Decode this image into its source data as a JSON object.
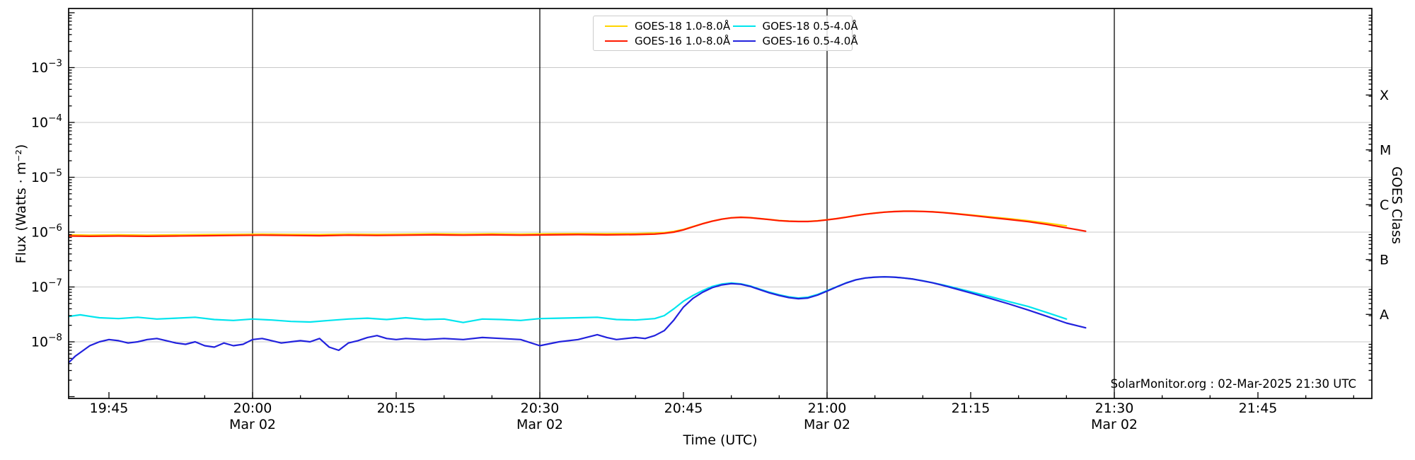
{
  "watermark": "SolarMonitor.org : 02-Mar-2025 21:30 UTC",
  "colors": {
    "background": "#ffffff",
    "grid": "#c8c8c8",
    "time_marker_line": "#000000",
    "spine": "#000000",
    "text": "#000000",
    "legend_border": "#cccccc",
    "goes18_long": "#ffd400",
    "goes16_long": "#ff1a00",
    "goes18_short": "#00e5ee",
    "goes16_short": "#2222dd"
  },
  "axes": {
    "x_label": "Time (UTC)",
    "y_left_label": "Flux (Watts · m⁻²)",
    "y_right_label": "GOES Class",
    "x_major_ticks": [
      {
        "time_min": 5,
        "label": "19:45",
        "date_label": ""
      },
      {
        "time_min": 20,
        "label": "20:00",
        "date_label": "Mar 02"
      },
      {
        "time_min": 35,
        "label": "20:15",
        "date_label": ""
      },
      {
        "time_min": 50,
        "label": "20:30",
        "date_label": "Mar 02"
      },
      {
        "time_min": 65,
        "label": "20:45",
        "date_label": ""
      },
      {
        "time_min": 80,
        "label": "21:00",
        "date_label": "Mar 02"
      },
      {
        "time_min": 95,
        "label": "21:15",
        "date_label": ""
      },
      {
        "time_min": 110,
        "label": "21:30",
        "date_label": "Mar 02"
      },
      {
        "time_min": 125,
        "label": "21:45",
        "date_label": ""
      }
    ],
    "x_minor_step_min": 5,
    "y_decade_exponents": [
      -3,
      -4,
      -5,
      -6,
      -7,
      -8
    ],
    "goes_classes": [
      {
        "label": "X",
        "between_exponents": [
          -4,
          -3
        ]
      },
      {
        "label": "M",
        "between_exponents": [
          -5,
          -4
        ]
      },
      {
        "label": "C",
        "between_exponents": [
          -6,
          -5
        ]
      },
      {
        "label": "B",
        "between_exponents": [
          -7,
          -6
        ]
      },
      {
        "label": "A",
        "between_exponents": [
          -8,
          -7
        ]
      }
    ]
  },
  "legend": {
    "entries": [
      {
        "label": "GOES-18 1.0-8.0Å",
        "color": "#ffd400"
      },
      {
        "label": "GOES-16 1.0-8.0Å",
        "color": "#ff1a00"
      },
      {
        "label": "GOES-18 0.5-4.0Å",
        "color": "#00e5ee"
      },
      {
        "label": "GOES-16 0.5-4.0Å",
        "color": "#2222dd"
      }
    ]
  },
  "chart_data": {
    "type": "line",
    "title": "",
    "xlabel": "Time (UTC)",
    "ylabel": "Flux (Watts · m⁻²)",
    "x_unit": "minutes after 19:40 UTC, 02-Mar-2025",
    "y_scale": "log",
    "xlim_minutes": [
      0.8,
      136.9
    ],
    "ylim": [
      9.3e-10,
      0.012
    ],
    "grid": "horizontal gray lines at each decade; black vertical lines at 20:00, 20:30, 21:00, 21:30",
    "legend_position": "upper center",
    "series": [
      {
        "name": "GOES-18 1.0-8.0Å",
        "color": "#ffd400",
        "x_minutes": [
          0.8,
          3,
          6,
          9,
          12,
          15,
          18,
          21,
          24,
          27,
          30,
          33,
          36,
          39,
          42,
          45,
          48,
          51,
          54,
          57,
          60,
          62,
          63,
          64,
          65,
          66,
          67,
          68,
          69,
          70,
          71,
          72,
          73,
          74,
          75,
          76,
          77,
          78,
          79,
          80,
          81,
          82,
          83,
          84,
          85,
          86,
          87,
          88,
          89,
          90,
          91,
          92,
          93,
          95,
          97,
          99,
          101,
          103,
          105
        ],
        "flux_wm2": [
          8.9e-07,
          8.8e-07,
          8.9e-07,
          8.8e-07,
          8.9e-07,
          9e-07,
          9.1e-07,
          9.2e-07,
          9.1e-07,
          9e-07,
          9.2e-07,
          9.1e-07,
          9.2e-07,
          9.3e-07,
          9.2e-07,
          9.3e-07,
          9.2e-07,
          9.3e-07,
          9.4e-07,
          9.3e-07,
          9.4e-07,
          9.6e-07,
          9.8e-07,
          1.03e-06,
          1.12e-06,
          1.27e-06,
          1.43e-06,
          1.59e-06,
          1.73e-06,
          1.83e-06,
          1.87e-06,
          1.84e-06,
          1.77e-06,
          1.7e-06,
          1.63e-06,
          1.59e-06,
          1.57e-06,
          1.57e-06,
          1.61e-06,
          1.68e-06,
          1.77e-06,
          1.88e-06,
          2.01e-06,
          2.13e-06,
          2.23e-06,
          2.32e-06,
          2.38e-06,
          2.41e-06,
          2.41e-06,
          2.39e-06,
          2.35e-06,
          2.29e-06,
          2.22e-06,
          2.06e-06,
          1.9e-06,
          1.76e-06,
          1.62e-06,
          1.46e-06,
          1.3e-06
        ]
      },
      {
        "name": "GOES-16 1.0-8.0Å",
        "color": "#ff1a00",
        "x_minutes": [
          0.8,
          3,
          6,
          9,
          12,
          15,
          18,
          21,
          24,
          27,
          30,
          33,
          36,
          39,
          42,
          45,
          48,
          51,
          54,
          57,
          60,
          62,
          63,
          64,
          65,
          66,
          67,
          68,
          69,
          70,
          71,
          72,
          73,
          74,
          75,
          76,
          77,
          78,
          79,
          80,
          81,
          82,
          83,
          84,
          85,
          86,
          87,
          88,
          89,
          90,
          91,
          92,
          93,
          95,
          97,
          99,
          101,
          103,
          105,
          107
        ],
        "flux_wm2": [
          8.5e-07,
          8.4e-07,
          8.5e-07,
          8.4e-07,
          8.5e-07,
          8.6e-07,
          8.7e-07,
          8.8e-07,
          8.7e-07,
          8.6e-07,
          8.8e-07,
          8.7e-07,
          8.8e-07,
          8.9e-07,
          8.8e-07,
          8.9e-07,
          8.8e-07,
          8.9e-07,
          9e-07,
          8.9e-07,
          9e-07,
          9.2e-07,
          9.5e-07,
          1e-06,
          1.1e-06,
          1.25e-06,
          1.42e-06,
          1.58e-06,
          1.72e-06,
          1.82e-06,
          1.86e-06,
          1.83e-06,
          1.76e-06,
          1.69e-06,
          1.62e-06,
          1.58e-06,
          1.56e-06,
          1.56e-06,
          1.6e-06,
          1.67e-06,
          1.76e-06,
          1.87e-06,
          2e-06,
          2.12e-06,
          2.22e-06,
          2.31e-06,
          2.37e-06,
          2.4e-06,
          2.4e-06,
          2.38e-06,
          2.34e-06,
          2.28e-06,
          2.2e-06,
          2.02e-06,
          1.85e-06,
          1.7e-06,
          1.55e-06,
          1.38e-06,
          1.2e-06,
          1.04e-06
        ]
      },
      {
        "name": "GOES-18 0.5-4.0Å",
        "color": "#00e5ee",
        "x_minutes": [
          0.8,
          2,
          4,
          6,
          8,
          10,
          12,
          14,
          16,
          18,
          20,
          22,
          24,
          26,
          28,
          30,
          32,
          34,
          36,
          38,
          40,
          42,
          44,
          46,
          48,
          50,
          52,
          54,
          56,
          58,
          60,
          62,
          63,
          64,
          65,
          66,
          67,
          68,
          69,
          70,
          71,
          72,
          73,
          74,
          75,
          76,
          77,
          78,
          79,
          80,
          81,
          82,
          83,
          84,
          85,
          86,
          87,
          88,
          89,
          90,
          91,
          92,
          93,
          95,
          97,
          99,
          101,
          103,
          105
        ],
        "flux_wm2": [
          2.9e-08,
          3.1e-08,
          2.75e-08,
          2.65e-08,
          2.8e-08,
          2.6e-08,
          2.7e-08,
          2.8e-08,
          2.55e-08,
          2.45e-08,
          2.6e-08,
          2.5e-08,
          2.35e-08,
          2.3e-08,
          2.45e-08,
          2.6e-08,
          2.7e-08,
          2.55e-08,
          2.75e-08,
          2.55e-08,
          2.6e-08,
          2.25e-08,
          2.6e-08,
          2.55e-08,
          2.45e-08,
          2.65e-08,
          2.7e-08,
          2.75e-08,
          2.8e-08,
          2.55e-08,
          2.5e-08,
          2.65e-08,
          3e-08,
          4e-08,
          5.5e-08,
          7e-08,
          8.6e-08,
          1.02e-07,
          1.13e-07,
          1.18e-07,
          1.14e-07,
          1.04e-07,
          9.1e-08,
          8e-08,
          7.2e-08,
          6.6e-08,
          6.3e-08,
          6.5e-08,
          7.3e-08,
          8.6e-08,
          1.01e-07,
          1.19e-07,
          1.35e-07,
          1.46e-07,
          1.51e-07,
          1.53e-07,
          1.51e-07,
          1.46e-07,
          1.39e-07,
          1.3e-07,
          1.2e-07,
          1.1e-07,
          1e-07,
          8.2e-08,
          6.7e-08,
          5.4e-08,
          4.4e-08,
          3.4e-08,
          2.6e-08
        ]
      },
      {
        "name": "GOES-16 0.5-4.0Å",
        "color": "#2222dd",
        "x_minutes": [
          0.8,
          1.5,
          3,
          4,
          5,
          6,
          7,
          8,
          9,
          10,
          11,
          12,
          13,
          14,
          15,
          16,
          17,
          18,
          19,
          20,
          21,
          22,
          23,
          24,
          25,
          26,
          27,
          28,
          29,
          30,
          31,
          32,
          33,
          34,
          35,
          36,
          38,
          40,
          42,
          44,
          46,
          48,
          50,
          52,
          54,
          56,
          57,
          58,
          60,
          61,
          62,
          63,
          64,
          65,
          66,
          67,
          68,
          69,
          70,
          71,
          72,
          73,
          74,
          75,
          76,
          77,
          78,
          79,
          80,
          81,
          82,
          83,
          84,
          85,
          86,
          87,
          88,
          89,
          90,
          91,
          92,
          93,
          95,
          97,
          99,
          101,
          103,
          105,
          107
        ],
        "flux_wm2": [
          4.2e-09,
          5.5e-09,
          8.5e-09,
          1e-08,
          1.1e-08,
          1.05e-08,
          9.5e-09,
          1e-08,
          1.1e-08,
          1.15e-08,
          1.05e-08,
          9.5e-09,
          9e-09,
          1e-08,
          8.5e-09,
          8e-09,
          9.5e-09,
          8.5e-09,
          9e-09,
          1.1e-08,
          1.15e-08,
          1.05e-08,
          9.5e-09,
          1e-08,
          1.05e-08,
          1e-08,
          1.15e-08,
          8e-09,
          7e-09,
          9.5e-09,
          1.05e-08,
          1.2e-08,
          1.3e-08,
          1.15e-08,
          1.1e-08,
          1.15e-08,
          1.1e-08,
          1.15e-08,
          1.1e-08,
          1.2e-08,
          1.15e-08,
          1.1e-08,
          8.5e-09,
          1e-08,
          1.1e-08,
          1.35e-08,
          1.2e-08,
          1.1e-08,
          1.2e-08,
          1.15e-08,
          1.3e-08,
          1.6e-08,
          2.5e-08,
          4.3e-08,
          6.2e-08,
          8e-08,
          9.7e-08,
          1.09e-07,
          1.15e-07,
          1.12e-07,
          1.02e-07,
          8.9e-08,
          7.8e-08,
          7e-08,
          6.4e-08,
          6.1e-08,
          6.3e-08,
          7.1e-08,
          8.4e-08,
          1e-07,
          1.18e-07,
          1.35e-07,
          1.46e-07,
          1.51e-07,
          1.53e-07,
          1.51e-07,
          1.46e-07,
          1.39e-07,
          1.29e-07,
          1.19e-07,
          1.08e-07,
          9.7e-08,
          7.8e-08,
          6.2e-08,
          4.9e-08,
          3.8e-08,
          2.9e-08,
          2.2e-08,
          1.8e-08
        ]
      }
    ]
  }
}
